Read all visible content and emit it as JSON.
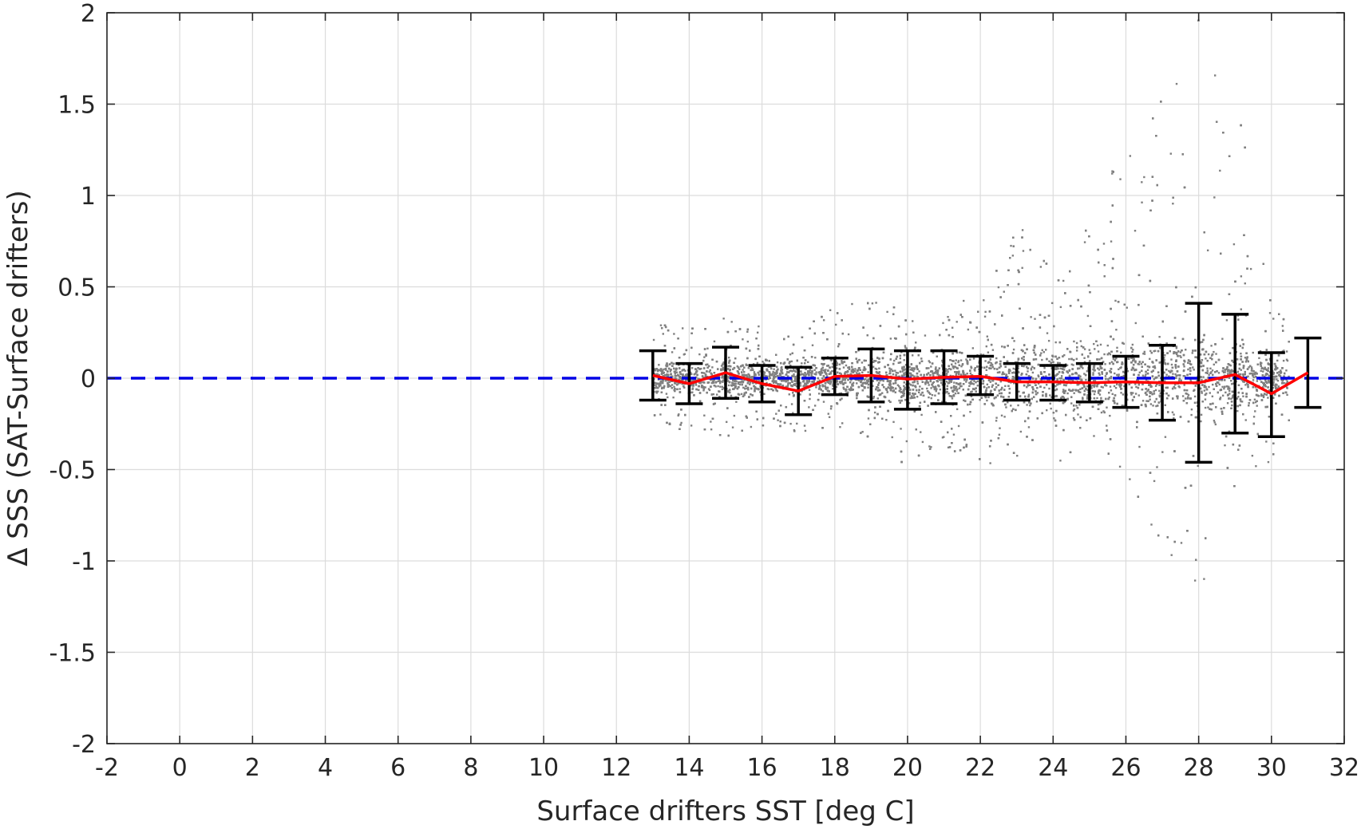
{
  "chart_data": {
    "type": "scatter",
    "title": "",
    "xlabel": "Surface drifters SST [deg C]",
    "ylabel": "Δ SSS (SAT-Surface drifters)",
    "xlim": [
      -2,
      32
    ],
    "ylim": [
      -2,
      2
    ],
    "xticks": [
      -2,
      0,
      2,
      4,
      6,
      8,
      10,
      12,
      14,
      16,
      18,
      20,
      22,
      24,
      26,
      28,
      30,
      32
    ],
    "yticks": [
      -2,
      -1.5,
      -1,
      -0.5,
      0,
      0.5,
      1,
      1.5,
      2
    ],
    "xtick_labels": [
      "-2",
      "0",
      "2",
      "4",
      "6",
      "8",
      "10",
      "12",
      "14",
      "16",
      "18",
      "20",
      "22",
      "24",
      "26",
      "28",
      "30",
      "32"
    ],
    "ytick_labels": [
      "-2",
      "-1.5",
      "-1",
      "-0.5",
      "0",
      "0.5",
      "1",
      "1.5",
      "2"
    ],
    "grid": true,
    "reference_line": {
      "y": 0,
      "style": "dashed",
      "color": "#0000e6"
    },
    "scatter_color": "#808080",
    "scatter_envelope": [
      {
        "x": 13,
        "lo": -0.26,
        "hi": 0.3
      },
      {
        "x": 14,
        "lo": -0.3,
        "hi": 0.28
      },
      {
        "x": 15,
        "lo": -0.32,
        "hi": 0.34
      },
      {
        "x": 16,
        "lo": -0.28,
        "hi": 0.28
      },
      {
        "x": 17,
        "lo": -0.3,
        "hi": 0.24
      },
      {
        "x": 18,
        "lo": -0.26,
        "hi": 0.42
      },
      {
        "x": 19,
        "lo": -0.34,
        "hi": 0.5
      },
      {
        "x": 20,
        "lo": -0.5,
        "hi": 0.45
      },
      {
        "x": 21,
        "lo": -0.38,
        "hi": 0.4
      },
      {
        "x": 22,
        "lo": -0.48,
        "hi": 0.48
      },
      {
        "x": 23,
        "lo": -0.46,
        "hi": 0.9
      },
      {
        "x": 24,
        "lo": -0.52,
        "hi": 0.6
      },
      {
        "x": 25,
        "lo": -0.45,
        "hi": 0.9
      },
      {
        "x": 26,
        "lo": -0.6,
        "hi": 1.3
      },
      {
        "x": 27,
        "lo": -0.9,
        "hi": 1.6
      },
      {
        "x": 28,
        "lo": -1.48,
        "hi": 2.0
      },
      {
        "x": 29,
        "lo": -0.65,
        "hi": 1.65
      },
      {
        "x": 30,
        "lo": -0.45,
        "hi": 0.4
      },
      {
        "x": 30.5,
        "lo": -0.3,
        "hi": 0.3
      }
    ],
    "series": [
      {
        "color": "#ff0000",
        "x": [
          13,
          14,
          15,
          16,
          17,
          18,
          19,
          20,
          21,
          22,
          23,
          24,
          25,
          26,
          27,
          28,
          29,
          30,
          31
        ],
        "mean": [
          0.015,
          -0.03,
          0.03,
          -0.03,
          -0.07,
          0.01,
          0.015,
          -0.005,
          0.005,
          0.01,
          -0.02,
          -0.02,
          -0.025,
          -0.02,
          -0.025,
          -0.025,
          0.02,
          -0.085,
          0.03
        ],
        "err_low": [
          -0.12,
          -0.14,
          -0.11,
          -0.13,
          -0.2,
          -0.09,
          -0.13,
          -0.17,
          -0.14,
          -0.09,
          -0.12,
          -0.12,
          -0.13,
          -0.16,
          -0.23,
          -0.46,
          -0.3,
          -0.32,
          -0.16
        ],
        "err_high": [
          0.15,
          0.08,
          0.17,
          0.07,
          0.06,
          0.11,
          0.16,
          0.15,
          0.15,
          0.12,
          0.08,
          0.07,
          0.08,
          0.12,
          0.18,
          0.41,
          0.35,
          0.14,
          0.22
        ]
      }
    ]
  }
}
